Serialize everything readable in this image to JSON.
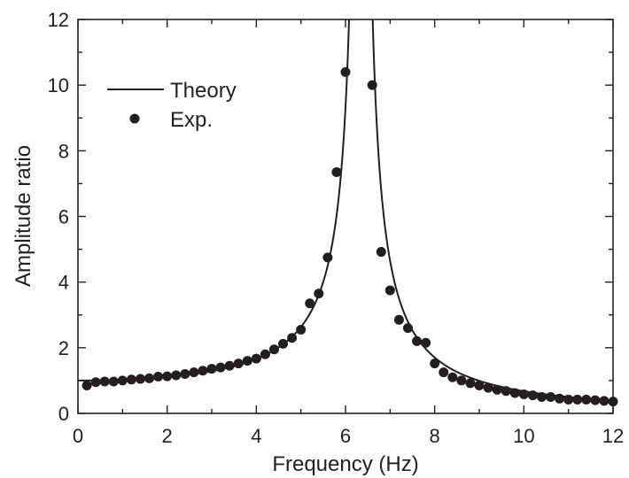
{
  "chart_data": {
    "type": "scatter",
    "xlabel": "Frequency (Hz)",
    "ylabel": "Amplitude ratio",
    "xlim": [
      0,
      12
    ],
    "ylim": [
      0,
      12
    ],
    "x_ticks": [
      0,
      2,
      4,
      6,
      8,
      10,
      12
    ],
    "y_ticks": [
      0,
      2,
      4,
      6,
      8,
      10,
      12
    ],
    "x_tick_labels": [
      "0",
      "2",
      "4",
      "6",
      "8",
      "10",
      "12"
    ],
    "y_tick_labels": [
      "0",
      "2",
      "4",
      "6",
      "8",
      "10",
      "12"
    ],
    "legend_position": "top-left",
    "grid": false,
    "colors": {
      "ink": "#231f20",
      "background": "#ffffff"
    },
    "series": [
      {
        "name": "Theory",
        "kind": "line",
        "model": "undamped single-degree-of-freedom amplitude ratio",
        "natural_frequency": 6.35,
        "x_range": [
          0,
          12
        ]
      },
      {
        "name": "Exp.",
        "kind": "scatter",
        "x": [
          0.2,
          0.4,
          0.6,
          0.8,
          1.0,
          1.2,
          1.4,
          1.6,
          1.8,
          2.0,
          2.2,
          2.4,
          2.6,
          2.8,
          3.0,
          3.2,
          3.4,
          3.6,
          3.8,
          4.0,
          4.2,
          4.4,
          4.6,
          4.8,
          5.0,
          5.2,
          5.4,
          5.6,
          5.8,
          6.0,
          6.6,
          6.8,
          7.0,
          7.2,
          7.4,
          7.6,
          7.8,
          8.0,
          8.2,
          8.4,
          8.6,
          8.8,
          9.0,
          9.2,
          9.4,
          9.6,
          9.8,
          10.0,
          10.2,
          10.4,
          10.6,
          10.8,
          11.0,
          11.2,
          11.4,
          11.6,
          11.8,
          12.0
        ],
        "y": [
          0.85,
          0.95,
          0.97,
          0.97,
          1.0,
          1.03,
          1.05,
          1.07,
          1.12,
          1.13,
          1.16,
          1.2,
          1.25,
          1.3,
          1.36,
          1.4,
          1.45,
          1.52,
          1.6,
          1.67,
          1.8,
          1.95,
          2.12,
          2.3,
          2.55,
          3.35,
          3.65,
          4.75,
          7.35,
          10.4,
          10.0,
          4.92,
          3.75,
          2.85,
          2.6,
          2.2,
          2.15,
          1.52,
          1.25,
          1.1,
          1.0,
          0.92,
          0.85,
          0.78,
          0.72,
          0.68,
          0.62,
          0.58,
          0.55,
          0.5,
          0.5,
          0.45,
          0.42,
          0.42,
          0.42,
          0.4,
          0.38,
          0.36
        ]
      }
    ]
  }
}
